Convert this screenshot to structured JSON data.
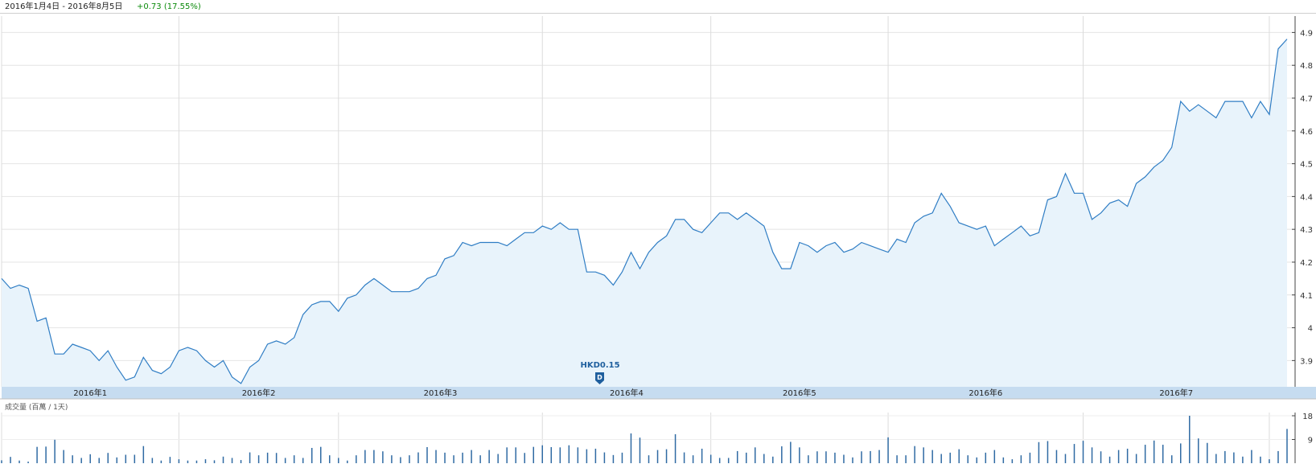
{
  "header": {
    "date_range": "2016年1月4日 - 2016年8月5日",
    "change": "+0.73 (17.55%)",
    "change_color": "#0a8a0a"
  },
  "dividend_marker": {
    "label": "HKD0.15",
    "date": "2016-03-24",
    "glyph": "D"
  },
  "volume_panel": {
    "label": "成交量 (百萬 / 1天)"
  },
  "chart_data": {
    "type": "area",
    "x_unit": "trading day",
    "price_axis": {
      "ticks": [
        3.9,
        4.0,
        4.1,
        4.2,
        4.3,
        4.4,
        4.5,
        4.6,
        4.7,
        4.8,
        4.9
      ],
      "ylim": [
        3.82,
        4.95
      ]
    },
    "month_labels": [
      {
        "label": "2016年1",
        "date": "2016-01"
      },
      {
        "label": "2016年2",
        "date": "2016-02"
      },
      {
        "label": "2016年3",
        "date": "2016-03"
      },
      {
        "label": "2016年4",
        "date": "2016-04"
      },
      {
        "label": "2016年5",
        "date": "2016-05"
      },
      {
        "label": "2016年6",
        "date": "2016-06"
      },
      {
        "label": "2016年7",
        "date": "2016-07"
      }
    ],
    "price_series": {
      "line_color": "#2f7dc4",
      "fill_color": "#e8f3fb",
      "values": [
        4.15,
        4.12,
        4.13,
        4.12,
        4.02,
        4.03,
        3.92,
        3.92,
        3.95,
        3.94,
        3.93,
        3.9,
        3.93,
        3.88,
        3.84,
        3.85,
        3.91,
        3.87,
        3.86,
        3.88,
        3.93,
        3.94,
        3.93,
        3.9,
        3.88,
        3.9,
        3.85,
        3.83,
        3.88,
        3.9,
        3.95,
        3.96,
        3.95,
        3.97,
        4.04,
        4.07,
        4.08,
        4.08,
        4.05,
        4.09,
        4.1,
        4.13,
        4.15,
        4.13,
        4.11,
        4.11,
        4.11,
        4.12,
        4.15,
        4.16,
        4.21,
        4.22,
        4.26,
        4.25,
        4.26,
        4.26,
        4.26,
        4.25,
        4.27,
        4.29,
        4.29,
        4.31,
        4.3,
        4.32,
        4.3,
        4.3,
        4.17,
        4.17,
        4.16,
        4.13,
        4.17,
        4.23,
        4.18,
        4.23,
        4.26,
        4.28,
        4.33,
        4.33,
        4.3,
        4.29,
        4.32,
        4.35,
        4.35,
        4.33,
        4.35,
        4.33,
        4.31,
        4.23,
        4.18,
        4.18,
        4.26,
        4.25,
        4.23,
        4.25,
        4.26,
        4.23,
        4.24,
        4.26,
        4.25,
        4.24,
        4.23,
        4.27,
        4.26,
        4.32,
        4.34,
        4.35,
        4.41,
        4.37,
        4.32,
        4.31,
        4.3,
        4.31,
        4.25,
        4.27,
        4.29,
        4.31,
        4.28,
        4.29,
        4.39,
        4.4,
        4.47,
        4.41,
        4.41,
        4.33,
        4.35,
        4.38,
        4.39,
        4.37,
        4.44,
        4.46,
        4.49,
        4.51,
        4.55,
        4.69,
        4.66,
        4.68,
        4.66,
        4.64,
        4.69,
        4.69,
        4.69,
        4.64,
        4.69,
        4.65,
        4.85,
        4.88
      ]
    },
    "volume_axis": {
      "ticks": [
        9,
        18
      ],
      "ylim": [
        0,
        18
      ]
    },
    "volume_series": {
      "bar_color": "#2f6aa3",
      "values": [
        1.1,
        2.4,
        1.0,
        0.6,
        6.2,
        6.3,
        8.9,
        5.0,
        3.0,
        2.0,
        3.4,
        2.0,
        3.9,
        2.2,
        3.2,
        3.2,
        6.5,
        2.0,
        1.0,
        2.4,
        1.5,
        1.0,
        1.0,
        1.5,
        1.1,
        2.5,
        2.0,
        1.2,
        4.1,
        3.0,
        4.0,
        3.9,
        2.0,
        3.0,
        2.0,
        5.8,
        6.2,
        3.0,
        2.0,
        1.0,
        3.0,
        5.0,
        5.0,
        4.5,
        3.0,
        2.3,
        3.0,
        4.1,
        6.1,
        5.0,
        4.0,
        3.0,
        4.0,
        5.0,
        3.0,
        5.0,
        3.5,
        6.0,
        6.0,
        3.9,
        6.2,
        6.8,
        6.1,
        6.0,
        6.8,
        6.0,
        5.3,
        5.5,
        4.1,
        3.1,
        4.0,
        11.3,
        9.7,
        3.0,
        5.0,
        5.3,
        11.0,
        4.1,
        3.0,
        5.5,
        3.2,
        2.0,
        2.0,
        4.6,
        4.0,
        6.0,
        3.5,
        2.5,
        6.4,
        8.1,
        6.0,
        3.0,
        4.5,
        4.5,
        4.0,
        3.2,
        2.2,
        4.5,
        4.6,
        5.0,
        9.8,
        3.0,
        3.0,
        6.5,
        6.0,
        5.0,
        3.5,
        4.0,
        5.3,
        3.0,
        2.2,
        4.0,
        5.0,
        2.2,
        1.5,
        3.0,
        4.0,
        8.0,
        8.4,
        5.0,
        3.5,
        7.3,
        8.5,
        6.0,
        4.5,
        2.5,
        5.0,
        5.5,
        3.5,
        7.0,
        8.6,
        7.0,
        3.0,
        7.5,
        18.0,
        9.4,
        7.7,
        3.5,
        4.6,
        4.1,
        2.5,
        5.0,
        2.5,
        1.5,
        4.6,
        13.0
      ]
    }
  }
}
